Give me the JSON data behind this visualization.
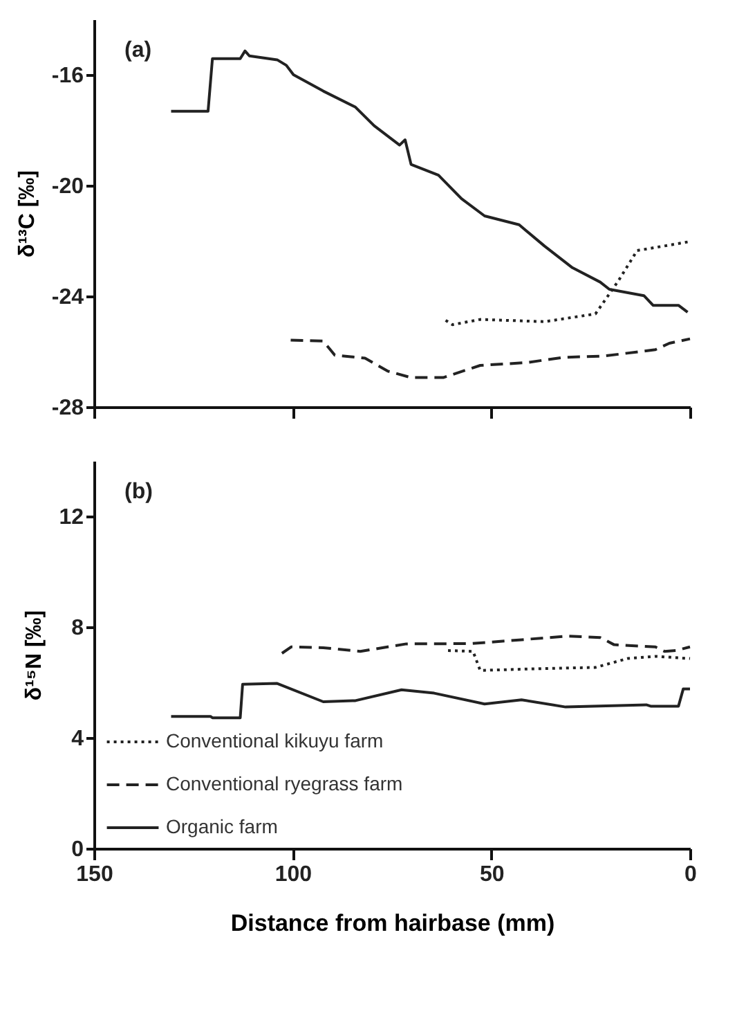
{
  "chart_data": [
    {
      "type": "line",
      "ylabel": "δ¹³C [‰]",
      "annotations": [
        "(a)"
      ],
      "xlim": [
        150,
        0
      ],
      "xticks": [
        150,
        100,
        50,
        0
      ],
      "ylim": [
        -28,
        -14
      ],
      "yticks": [
        -28,
        -24,
        -20,
        -16
      ],
      "tick_labels": "y",
      "grid": false,
      "legend": false,
      "series": [
        {
          "color": "#222222",
          "line_style": "dotted",
          "x": [
            61.5,
            59.8,
            52.8,
            36.6,
            23.8,
            18.0,
            13.3,
            9.9,
            0.6
          ],
          "values": [
            -24.87,
            -25.03,
            -24.84,
            -24.92,
            -24.64,
            -23.44,
            -22.35,
            -22.27,
            -22.04
          ]
        },
        {
          "color": "#222222",
          "line_style": "dashed",
          "x": [
            100.5,
            92.3,
            89.4,
            81.8,
            76.0,
            70.2,
            62.1,
            52.8,
            41.2,
            31.9,
            21.5,
            8.7,
            5.2,
            0
          ],
          "values": [
            -25.59,
            -25.62,
            -26.13,
            -26.24,
            -26.71,
            -26.94,
            -26.94,
            -26.5,
            -26.4,
            -26.21,
            -26.16,
            -25.93,
            -25.7,
            -25.54
          ]
        },
        {
          "color": "#222222",
          "line_style": "solid",
          "x": [
            130.6,
            121.3,
            120.2,
            113.2,
            112.0,
            110.9,
            103.9,
            101.6,
            99.8,
            92.3,
            84.2,
            79.5,
            73.1,
            71.7,
            70.2,
            63.3,
            57.5,
            51.7,
            43.0,
            36.6,
            29.6,
            22.6,
            20.3,
            11.6,
            9.3,
            2.9,
            0.6
          ],
          "values": [
            -17.32,
            -17.32,
            -15.42,
            -15.42,
            -15.14,
            -15.32,
            -15.46,
            -15.66,
            -16.0,
            -16.59,
            -17.17,
            -17.84,
            -18.54,
            -18.35,
            -19.24,
            -19.63,
            -20.48,
            -21.1,
            -21.42,
            -22.19,
            -22.97,
            -23.49,
            -23.75,
            -23.98,
            -24.33,
            -24.33,
            -24.58
          ]
        }
      ]
    },
    {
      "type": "line",
      "ylabel": "δ¹⁵N [‰]",
      "xlabel": "Distance from hairbase (mm)",
      "annotations": [
        "(b)"
      ],
      "xlim": [
        150,
        0
      ],
      "xticks": [
        150,
        100,
        50,
        0
      ],
      "ylim": [
        0,
        14
      ],
      "yticks": [
        0,
        4,
        8,
        12
      ],
      "grid": false,
      "legend": "bottom left",
      "series": [
        {
          "name": "Conventional kikuyu farm",
          "color": "#222222",
          "line_style": "dotted",
          "x": [
            60.9,
            54.6,
            52.8,
            36.6,
            23.8,
            15.7,
            8.7,
            0
          ],
          "values": [
            7.15,
            7.12,
            6.43,
            6.5,
            6.54,
            6.86,
            6.94,
            6.86
          ]
        },
        {
          "name": "Conventional ryegrass farm",
          "color": "#222222",
          "line_style": "dashed",
          "x": [
            102.7,
            100.4,
            92.3,
            83.0,
            71.4,
            55.1,
            42.4,
            30.8,
            22.6,
            19.1,
            8.7,
            6.4,
            3.5,
            0
          ],
          "values": [
            7.05,
            7.28,
            7.25,
            7.12,
            7.39,
            7.4,
            7.54,
            7.67,
            7.62,
            7.36,
            7.28,
            7.12,
            7.15,
            7.28
          ]
        },
        {
          "name": "Organic farm",
          "color": "#222222",
          "line_style": "solid",
          "x": [
            130.6,
            120.7,
            120.2,
            113.2,
            112.6,
            103.9,
            92.3,
            84.2,
            72.6,
            64.4,
            51.7,
            42.4,
            31.3,
            11.0,
            9.9,
            2.9,
            1.7,
            0
          ],
          "values": [
            4.77,
            4.77,
            4.72,
            4.72,
            5.93,
            5.96,
            5.3,
            5.34,
            5.73,
            5.61,
            5.22,
            5.37,
            5.11,
            5.19,
            5.14,
            5.14,
            5.76,
            5.76
          ]
        }
      ]
    }
  ]
}
